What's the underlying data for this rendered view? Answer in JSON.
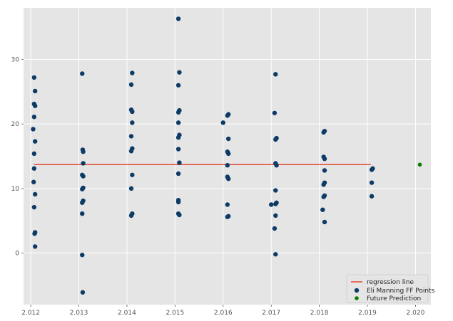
{
  "chart_data": {
    "type": "scatter",
    "title": "",
    "xlabel": "",
    "ylabel": "",
    "xlim": [
      2011.85,
      2020.32
    ],
    "ylim": [
      -8,
      38
    ],
    "grid": true,
    "legend_position": "bottom-right",
    "x_ticks": [
      2012,
      2013,
      2014,
      2015,
      2016,
      2017,
      2018,
      2019,
      2020
    ],
    "x_tick_labels": [
      "2.012",
      "2.013",
      "2.014",
      "2.015",
      "2.016",
      "2.017",
      "2.018",
      "2.019",
      "2.020"
    ],
    "y_ticks": [
      0,
      10,
      20,
      30
    ],
    "y_tick_labels": [
      "0",
      "10",
      "20",
      "30"
    ],
    "colors": {
      "figure_background": "#ffffff",
      "plot_background": "#e5e5e5",
      "grid": "#ffffff",
      "regression": "#e24a33",
      "points": "#0d3b66",
      "prediction": "#0a7d00"
    },
    "series": [
      {
        "name": "regression line",
        "kind": "line",
        "x": [
          2012.07,
          2019.07
        ],
        "y": [
          13.7,
          13.7
        ]
      },
      {
        "name": "Eli Manning FF Points",
        "kind": "scatter",
        "points": [
          [
            2012.07,
            27.2
          ],
          [
            2012.09,
            25.1
          ],
          [
            2012.07,
            23.1
          ],
          [
            2012.09,
            22.8
          ],
          [
            2012.07,
            21.1
          ],
          [
            2012.05,
            19.2
          ],
          [
            2012.09,
            17.3
          ],
          [
            2012.07,
            15.4
          ],
          [
            2012.07,
            13.1
          ],
          [
            2012.06,
            11.0
          ],
          [
            2012.09,
            9.1
          ],
          [
            2012.07,
            7.1
          ],
          [
            2012.09,
            3.2
          ],
          [
            2012.08,
            3.0
          ],
          [
            2012.09,
            1.0
          ],
          [
            2013.07,
            27.8
          ],
          [
            2013.08,
            16.0
          ],
          [
            2013.09,
            15.7
          ],
          [
            2013.09,
            13.9
          ],
          [
            2013.07,
            12.1
          ],
          [
            2013.09,
            11.9
          ],
          [
            2013.09,
            10.1
          ],
          [
            2013.07,
            9.9
          ],
          [
            2013.09,
            8.1
          ],
          [
            2013.07,
            7.8
          ],
          [
            2013.07,
            6.1
          ],
          [
            2013.07,
            -0.3
          ],
          [
            2013.08,
            -6.1
          ],
          [
            2014.11,
            27.9
          ],
          [
            2014.09,
            26.1
          ],
          [
            2014.09,
            22.2
          ],
          [
            2014.11,
            21.9
          ],
          [
            2014.11,
            20.2
          ],
          [
            2014.09,
            18.1
          ],
          [
            2014.11,
            16.2
          ],
          [
            2014.09,
            15.8
          ],
          [
            2014.11,
            12.1
          ],
          [
            2014.09,
            10.0
          ],
          [
            2014.11,
            6.1
          ],
          [
            2014.09,
            5.8
          ],
          [
            2015.07,
            36.3
          ],
          [
            2015.09,
            28.0
          ],
          [
            2015.07,
            26.0
          ],
          [
            2015.09,
            22.1
          ],
          [
            2015.07,
            21.8
          ],
          [
            2015.07,
            20.2
          ],
          [
            2015.09,
            18.3
          ],
          [
            2015.07,
            17.9
          ],
          [
            2015.07,
            16.1
          ],
          [
            2015.09,
            14.0
          ],
          [
            2015.07,
            12.3
          ],
          [
            2015.07,
            8.2
          ],
          [
            2015.07,
            7.9
          ],
          [
            2015.07,
            6.1
          ],
          [
            2015.09,
            5.9
          ],
          [
            2016.11,
            21.5
          ],
          [
            2016.09,
            21.3
          ],
          [
            2016.0,
            20.2
          ],
          [
            2016.11,
            17.7
          ],
          [
            2016.09,
            15.7
          ],
          [
            2016.11,
            15.4
          ],
          [
            2016.09,
            13.6
          ],
          [
            2016.09,
            11.8
          ],
          [
            2016.11,
            11.5
          ],
          [
            2016.09,
            7.5
          ],
          [
            2016.11,
            5.7
          ],
          [
            2016.09,
            5.6
          ],
          [
            2017.09,
            27.7
          ],
          [
            2017.07,
            21.7
          ],
          [
            2017.11,
            17.8
          ],
          [
            2017.09,
            17.6
          ],
          [
            2017.09,
            13.9
          ],
          [
            2017.11,
            13.6
          ],
          [
            2017.09,
            9.7
          ],
          [
            2017.11,
            7.8
          ],
          [
            2017.09,
            7.6
          ],
          [
            2017.0,
            7.5
          ],
          [
            2017.09,
            5.8
          ],
          [
            2017.07,
            3.8
          ],
          [
            2017.09,
            -0.2
          ],
          [
            2018.11,
            18.9
          ],
          [
            2018.09,
            18.7
          ],
          [
            2018.09,
            14.9
          ],
          [
            2018.11,
            14.6
          ],
          [
            2018.11,
            12.8
          ],
          [
            2018.11,
            10.9
          ],
          [
            2018.09,
            10.6
          ],
          [
            2018.11,
            8.9
          ],
          [
            2018.09,
            8.7
          ],
          [
            2018.07,
            6.7
          ],
          [
            2018.11,
            4.8
          ],
          [
            2019.11,
            13.1
          ],
          [
            2019.09,
            12.9
          ],
          [
            2019.09,
            10.9
          ],
          [
            2019.09,
            8.8
          ]
        ]
      },
      {
        "name": "Future Prediction",
        "kind": "scatter",
        "points": [
          [
            2020.09,
            13.7
          ]
        ]
      }
    ]
  }
}
